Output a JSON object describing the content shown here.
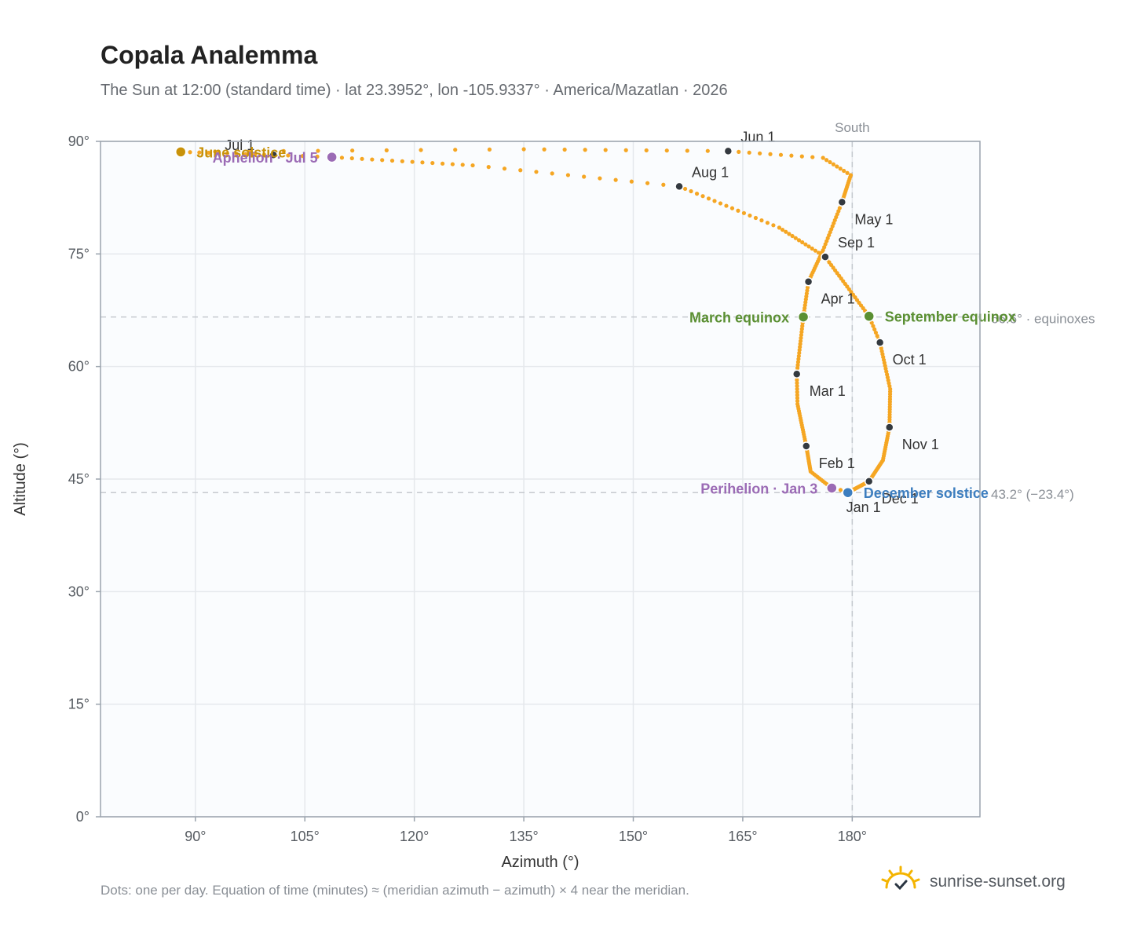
{
  "header": {
    "title": "Copala Analemma",
    "subtitle": "The Sun at 12:00 (standard time) · lat 23.3952°, lon -105.9337° · America/Mazatlan · 2026"
  },
  "footer": {
    "note": "Dots: one per day. Equation of time (minutes) ≈ (meridian azimuth − azimuth) × 4 near the meridian.",
    "brand": "sunrise-sunset.org"
  },
  "colors": {
    "path": "#f5a623",
    "month_dot": "#343a40",
    "june_solstice": "#c8920a",
    "december_solstice": "#3d7ebf",
    "equinox": "#5a8f32",
    "aphelion_perihelion": "#9b6bb5",
    "grid": "#e5e8ec",
    "plot_bg": "#fafcfe",
    "frame": "#9aa3ad",
    "refline": "#c5c9cf"
  },
  "chart_data": {
    "type": "scatter",
    "title": "Copala Analemma",
    "xlabel": "Azimuth (°)",
    "ylabel": "Altitude (°)",
    "xlim": [
      77,
      197.5
    ],
    "ylim": [
      0,
      90
    ],
    "x_ticks": [
      90,
      105,
      120,
      135,
      150,
      165,
      180
    ],
    "x_tick_labels": [
      "90°",
      "105°",
      "120°",
      "135°",
      "150°",
      "165°",
      "180°"
    ],
    "y_ticks": [
      0,
      15,
      30,
      45,
      60,
      75,
      90
    ],
    "y_tick_labels": [
      "0°",
      "15°",
      "30°",
      "45°",
      "60°",
      "75°",
      "90°"
    ],
    "grid": true,
    "meridian": {
      "azimuth": 180,
      "label": "South"
    },
    "reference_lines": [
      {
        "altitude": 66.6,
        "label": "66.6° · equinoxes"
      },
      {
        "altitude": 43.2,
        "label": "43.2° (−23.4°)"
      }
    ],
    "path_anchors": [
      {
        "doy": 1,
        "az": 179.6,
        "alt": 43.3
      },
      {
        "doy": 3,
        "az": 177.2,
        "alt": 43.8
      },
      {
        "doy": 15,
        "az": 174.3,
        "alt": 46.0
      },
      {
        "doy": 32,
        "az": 173.7,
        "alt": 49.4
      },
      {
        "doy": 50,
        "az": 172.5,
        "alt": 55.0
      },
      {
        "doy": 60,
        "az": 172.4,
        "alt": 59.0
      },
      {
        "doy": 79,
        "az": 173.3,
        "alt": 66.6
      },
      {
        "doy": 91,
        "az": 174.0,
        "alt": 71.3
      },
      {
        "doy": 105,
        "az": 176.0,
        "alt": 75.5
      },
      {
        "doy": 121,
        "az": 178.6,
        "alt": 81.9
      },
      {
        "doy": 135,
        "az": 179.8,
        "alt": 85.5
      },
      {
        "doy": 143,
        "az": 176.0,
        "alt": 87.8
      },
      {
        "doy": 152,
        "az": 163.0,
        "alt": 88.7
      },
      {
        "doy": 162,
        "az": 135.0,
        "alt": 88.95
      },
      {
        "doy": 172,
        "az": 88.0,
        "alt": 88.6
      },
      {
        "doy": 182,
        "az": 100.7,
        "alt": 88.2
      },
      {
        "doy": 186,
        "az": 108.7,
        "alt": 87.9
      },
      {
        "doy": 200,
        "az": 128.0,
        "alt": 86.8
      },
      {
        "doy": 213,
        "az": 156.3,
        "alt": 84.0
      },
      {
        "doy": 230,
        "az": 170.0,
        "alt": 78.5
      },
      {
        "doy": 244,
        "az": 176.3,
        "alt": 74.6
      },
      {
        "doy": 266,
        "az": 182.3,
        "alt": 66.7
      },
      {
        "doy": 274,
        "az": 183.8,
        "alt": 63.2
      },
      {
        "doy": 290,
        "az": 185.2,
        "alt": 57.0
      },
      {
        "doy": 305,
        "az": 185.1,
        "alt": 51.9
      },
      {
        "doy": 320,
        "az": 184.2,
        "alt": 47.5
      },
      {
        "doy": 335,
        "az": 182.3,
        "alt": 44.7
      },
      {
        "doy": 355,
        "az": 179.4,
        "alt": 43.2
      },
      {
        "doy": 365,
        "az": 179.6,
        "alt": 43.3
      }
    ],
    "month_markers": [
      {
        "label": "Jan 1",
        "az": 179.6,
        "alt": 43.3,
        "pos": "below"
      },
      {
        "label": "Feb 1",
        "az": 173.7,
        "alt": 49.4,
        "pos": "right"
      },
      {
        "label": "Mar 1",
        "az": 172.4,
        "alt": 59.0,
        "pos": "right"
      },
      {
        "label": "Apr 1",
        "az": 174.0,
        "alt": 71.3,
        "pos": "right"
      },
      {
        "label": "May 1",
        "az": 178.6,
        "alt": 81.9,
        "pos": "right"
      },
      {
        "label": "Jun 1",
        "az": 163.0,
        "alt": 88.7,
        "pos": "above"
      },
      {
        "label": "Jul 1",
        "az": 100.7,
        "alt": 88.2,
        "pos": "aboveleft"
      },
      {
        "label": "Aug 1",
        "az": 156.3,
        "alt": 84.0,
        "pos": "above"
      },
      {
        "label": "Sep 1",
        "az": 176.3,
        "alt": 74.6,
        "pos": "aboveright"
      },
      {
        "label": "Oct 1",
        "az": 183.8,
        "alt": 63.2,
        "pos": "right"
      },
      {
        "label": "Nov 1",
        "az": 185.1,
        "alt": 51.9,
        "pos": "right"
      },
      {
        "label": "Dec 1",
        "az": 182.3,
        "alt": 44.7,
        "pos": "right"
      }
    ],
    "events": [
      {
        "label": "June solstice",
        "az": 88.0,
        "alt": 88.6,
        "color": "#c8920a",
        "side": "right"
      },
      {
        "label": "Aphelion · Jul 5",
        "az": 108.7,
        "alt": 87.9,
        "color": "#9b6bb5",
        "side": "left"
      },
      {
        "label": "March equinox",
        "az": 173.3,
        "alt": 66.6,
        "color": "#5a8f32",
        "side": "left"
      },
      {
        "label": "September equinox",
        "az": 182.3,
        "alt": 66.7,
        "color": "#5a8f32",
        "side": "right"
      },
      {
        "label": "Perihelion · Jan 3",
        "az": 177.2,
        "alt": 43.8,
        "color": "#9b6bb5",
        "side": "left"
      },
      {
        "label": "December solstice",
        "az": 179.4,
        "alt": 43.2,
        "color": "#3d7ebf",
        "side": "right"
      }
    ]
  }
}
